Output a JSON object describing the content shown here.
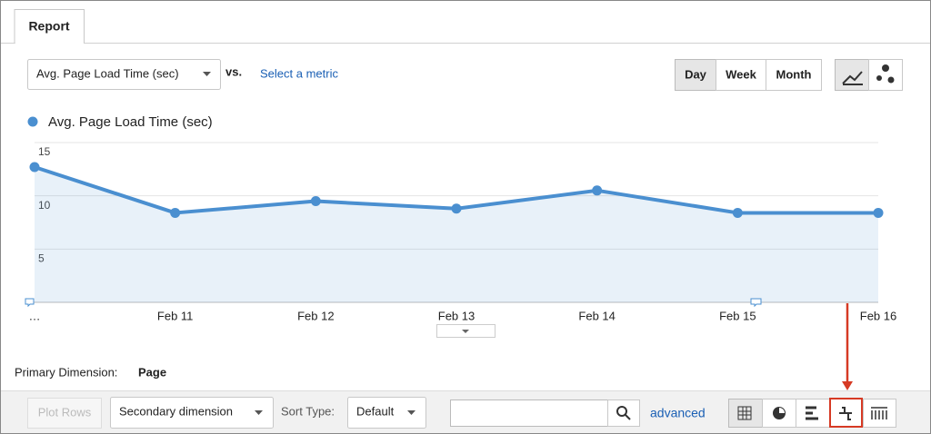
{
  "tab": "Report",
  "metric_dropdown": "Avg. Page Load Time (sec)",
  "vs": "vs.",
  "compare_link": "Select a metric",
  "periods": [
    "Day",
    "Week",
    "Month"
  ],
  "chart_data": {
    "type": "line",
    "categories": [
      "…",
      "Feb 11",
      "Feb 12",
      "Feb 13",
      "Feb 14",
      "Feb 15",
      "Feb 16"
    ],
    "series": [
      {
        "name": "Avg. Page Load Time (sec)",
        "color": "#4a8fd0",
        "values": [
          12.7,
          8.4,
          9.5,
          8.8,
          10.5,
          8.4,
          8.4
        ]
      }
    ],
    "ylim": [
      0,
      15
    ],
    "yticks": [
      5,
      10,
      15
    ],
    "grid": true,
    "area": true
  },
  "primary_dimension": {
    "label": "Primary Dimension:",
    "value": "Page"
  },
  "toolbar": {
    "plot_rows": "Plot Rows",
    "secondary": "Secondary dimension",
    "sort_label": "Sort Type:",
    "sort_value": "Default",
    "advanced": "advanced"
  }
}
